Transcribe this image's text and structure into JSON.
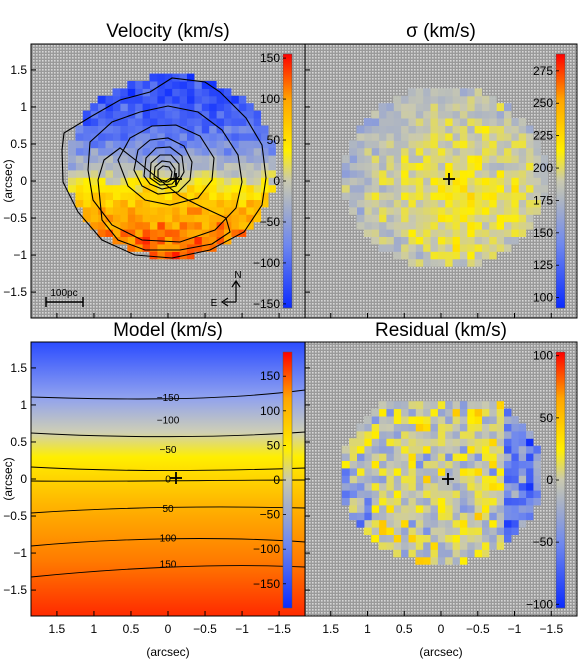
{
  "chart_data": [
    {
      "type": "heatmap",
      "title": "Velocity (km/s)",
      "ylabel": "(arcsec)",
      "xlim": [
        1.85,
        -1.85
      ],
      "ylim": [
        -1.85,
        1.85
      ],
      "yticks": [
        1.5,
        1,
        0.5,
        0,
        -0.5,
        -1,
        -1.5
      ],
      "ytick_labels": [
        "1.5",
        "1",
        "0.5",
        "0",
        "−0.5",
        "−1",
        "−1.5"
      ],
      "colorbar": {
        "min": -155,
        "max": 155,
        "ticks": [
          150,
          100,
          50,
          0,
          -50,
          -100,
          -150
        ],
        "tick_labels": [
          "150",
          "100",
          "50",
          "0",
          "−50",
          "−100",
          "−150"
        ]
      },
      "scale_bar_label": "100pc",
      "compass": {
        "north": "N",
        "east": "E"
      },
      "center_marker": [
        -0.1,
        0.05
      ]
    },
    {
      "type": "heatmap",
      "title": "σ (km/s)",
      "xlim": [
        1.85,
        -1.85
      ],
      "ylim": [
        -1.85,
        1.85
      ],
      "colorbar": {
        "min": 92,
        "max": 288,
        "ticks": [
          275,
          250,
          225,
          200,
          175,
          150,
          125,
          100
        ],
        "tick_labels": [
          "275",
          "250",
          "225",
          "200",
          "175",
          "150",
          "125",
          "100"
        ]
      },
      "center_marker": [
        -0.1,
        0.05
      ]
    },
    {
      "type": "heatmap",
      "title": "Model (km/s)",
      "xlabel": "(arcsec)",
      "ylabel": "(arcsec)",
      "xlim": [
        1.85,
        -1.85
      ],
      "ylim": [
        -1.85,
        1.85
      ],
      "xticks": [
        1.5,
        1,
        0.5,
        0,
        -0.5,
        -1,
        -1.5
      ],
      "xtick_labels": [
        "1.5",
        "1",
        "0.5",
        "0",
        "−0.5",
        "−1",
        "−1.5"
      ],
      "yticks": [
        1.5,
        1,
        0.5,
        0,
        -0.5,
        -1,
        -1.5
      ],
      "ytick_labels": [
        "1.5",
        "1",
        "0.5",
        "0",
        "−0.5",
        "−1",
        "−1.5"
      ],
      "colorbar": {
        "min": -185,
        "max": 185,
        "ticks": [
          150,
          100,
          50,
          0,
          -50,
          -100,
          -150
        ],
        "tick_labels": [
          "150",
          "100",
          "50",
          "0",
          "−50",
          "−100",
          "−150"
        ]
      },
      "contour_levels": [
        -150,
        -100,
        -50,
        0,
        50,
        100,
        150
      ],
      "contour_labels": [
        "−150",
        "−100",
        "−50",
        "0",
        "50",
        "100",
        "150"
      ],
      "contour_y_at_center": [
        1.1,
        0.8,
        0.4,
        0.0,
        -0.4,
        -0.8,
        -1.15
      ],
      "center_marker": [
        -0.1,
        0.05
      ]
    },
    {
      "type": "heatmap",
      "title": "Residual (km/s)",
      "xlabel": "(arcsec)",
      "xlim": [
        1.85,
        -1.85
      ],
      "ylim": [
        -1.85,
        1.85
      ],
      "xticks": [
        1.5,
        1,
        0.5,
        0,
        -0.5,
        -1,
        -1.5
      ],
      "xtick_labels": [
        "1.5",
        "1",
        "0.5",
        "0",
        "−0.5",
        "−1",
        "−1.5"
      ],
      "colorbar": {
        "min": -103,
        "max": 103,
        "ticks": [
          100,
          50,
          0,
          -50,
          -100
        ],
        "tick_labels": [
          "100",
          "50",
          "0",
          "−50",
          "−100"
        ]
      },
      "center_marker": [
        -0.1,
        0.05
      ]
    }
  ]
}
